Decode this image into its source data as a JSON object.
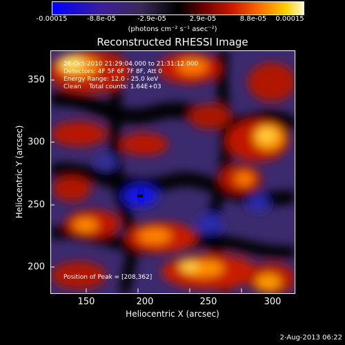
{
  "colorbar": {
    "ticks": [
      "-0.00015",
      "-8.8e-05",
      "-2.9e-05",
      "2.9e-05",
      "8.8e-05",
      "0.00015"
    ],
    "unit": "(photons cm⁻² s⁻¹ asec⁻²)"
  },
  "title": "Reconstructed RHESSI Image",
  "info": {
    "time": "26-Oct-2010 21:29:04.000 to 21:31:12.000",
    "detectors": "Detectors: 4F 5F 6F 7F 8F, Att 0",
    "energy": "Energy Range: 12.0 - 25.0 keV",
    "clean": "Clean    Total counts: 1.64E+03",
    "peak": "Position of Peak = [208,362]"
  },
  "axes": {
    "xlabel": "Heliocentric X (arcsec)",
    "ylabel": "Heliocentric Y (arcsec)",
    "xticks": [
      "150",
      "200",
      "250",
      "300"
    ],
    "yticks": [
      "350",
      "300",
      "250",
      "200"
    ]
  },
  "datestamp": "2-Aug-2013 06:22"
}
